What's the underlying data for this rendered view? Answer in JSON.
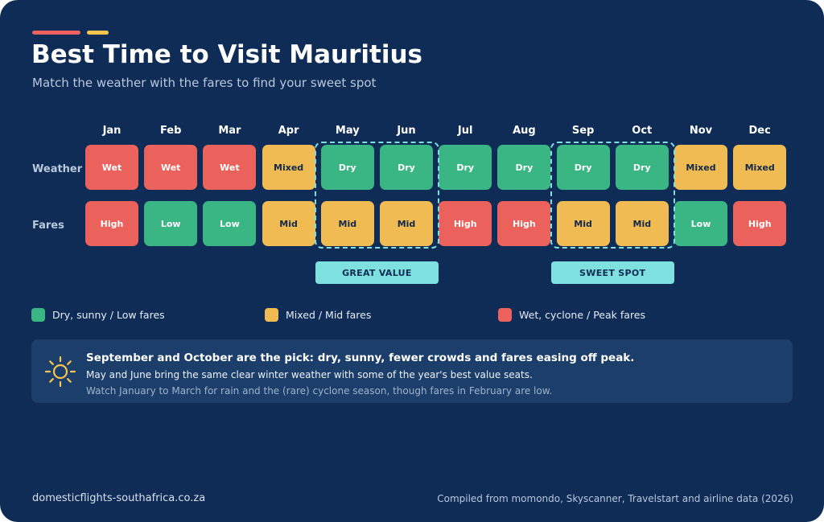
{
  "title": "Best Time to Visit Mauritius",
  "subtitle": "Match the weather with the fares to find your sweet spot",
  "colors": {
    "background": "#0f2c56",
    "green": "#3ab584",
    "yellow": "#efbb52",
    "red": "#eb615b",
    "highlight": "#7ee0df",
    "accent_red": "#eb615b",
    "accent_yellow": "#f5c54f"
  },
  "chart_data": {
    "type": "heatmap",
    "columns": [
      "Jan",
      "Feb",
      "Mar",
      "Apr",
      "May",
      "Jun",
      "Jul",
      "Aug",
      "Sep",
      "Oct",
      "Nov",
      "Dec"
    ],
    "rows": [
      {
        "label": "Weather",
        "values": [
          "Wet",
          "Wet",
          "Wet",
          "Mixed",
          "Dry",
          "Dry",
          "Dry",
          "Dry",
          "Dry",
          "Dry",
          "Mixed",
          "Mixed"
        ],
        "colors": [
          "red",
          "red",
          "red",
          "yellow",
          "green",
          "green",
          "green",
          "green",
          "green",
          "green",
          "yellow",
          "yellow"
        ]
      },
      {
        "label": "Fares",
        "values": [
          "High",
          "Low",
          "Low",
          "Mid",
          "Mid",
          "Mid",
          "High",
          "High",
          "Mid",
          "Mid",
          "Low",
          "High"
        ],
        "colors": [
          "red",
          "green",
          "green",
          "yellow",
          "yellow",
          "yellow",
          "red",
          "red",
          "yellow",
          "yellow",
          "green",
          "red"
        ]
      }
    ],
    "highlights": [
      {
        "label": "GREAT VALUE",
        "months": [
          "May",
          "Jun"
        ]
      },
      {
        "label": "SWEET SPOT",
        "months": [
          "Sep",
          "Oct"
        ]
      }
    ],
    "legend": [
      {
        "label": "Dry, sunny / Low fares",
        "color": "green"
      },
      {
        "label": "Mixed / Mid fares",
        "color": "yellow"
      },
      {
        "label": "Wet, cyclone / Peak fares",
        "color": "red"
      }
    ]
  },
  "note": {
    "icon": "sun-icon",
    "headline": "September and October are the pick: dry, sunny, fewer crowds and fares easing off peak.",
    "line2": "May and June bring the same clear winter weather with some of the year's best value seats.",
    "line3": "Watch January to March for rain and the (rare) cyclone season, though fares in February are low."
  },
  "footer": {
    "left": "domesticflights-southafrica.co.za",
    "right": "Compiled from momondo, Skyscanner, Travelstart and airline data (2026)"
  }
}
